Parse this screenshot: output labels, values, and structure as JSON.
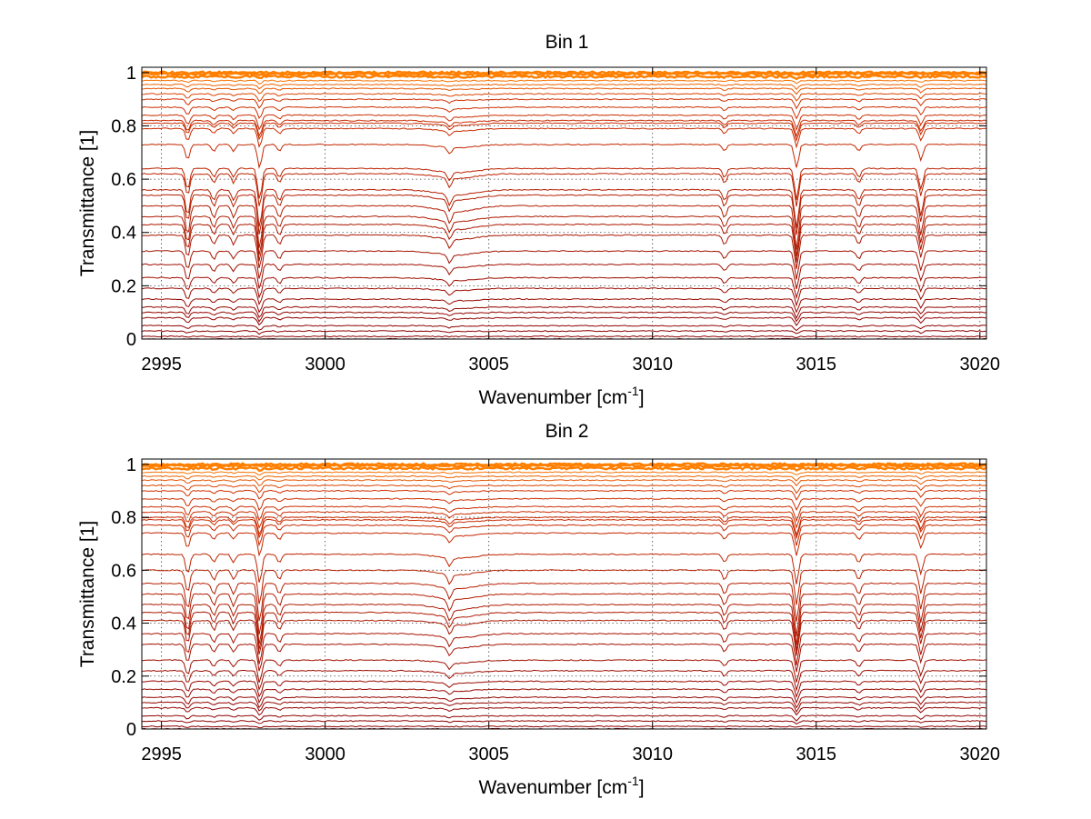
{
  "chart_data": [
    {
      "type": "line",
      "title": "Bin 1",
      "xlabel": "Wavenumber [cm",
      "xlabel_sup": "-1",
      "xlabel_suffix": "]",
      "ylabel": "Transmittance [1]",
      "xlim": [
        2994.4,
        3020.2
      ],
      "ylim": [
        0,
        1.02
      ],
      "xticks": [
        2995,
        3000,
        3005,
        3010,
        3015,
        3020
      ],
      "yticks": [
        0,
        0.2,
        0.4,
        0.6,
        0.8,
        1
      ],
      "ytick_labels": [
        "0",
        "0.2",
        "0.4",
        "0.6",
        "0.8",
        "1"
      ],
      "grid": true,
      "grid_style": "dotted",
      "colors": {
        "dark": "#8b0000",
        "mid": "#d03000",
        "light": "#ff7f00"
      },
      "absorption_lines": [
        2995.8,
        2996.6,
        2997.2,
        2998.0,
        2998.6,
        3003.8,
        3012.2,
        3014.4,
        3016.3,
        3018.2
      ],
      "series_levels": [
        1.0,
        0.995,
        0.985,
        0.97,
        0.955,
        0.94,
        0.92,
        0.9,
        0.87,
        0.84,
        0.82,
        0.81,
        0.79,
        0.73,
        0.64,
        0.62,
        0.56,
        0.54,
        0.5,
        0.46,
        0.43,
        0.39,
        0.33,
        0.28,
        0.23,
        0.19,
        0.15,
        0.12,
        0.1,
        0.08,
        0.05,
        0.03,
        0.01,
        0.0
      ]
    },
    {
      "type": "line",
      "title": "Bin 2",
      "xlabel": "Wavenumber [cm",
      "xlabel_sup": "-1",
      "xlabel_suffix": "]",
      "ylabel": "Transmittance [1]",
      "xlim": [
        2994.4,
        3020.2
      ],
      "ylim": [
        0,
        1.02
      ],
      "xticks": [
        2995,
        3000,
        3005,
        3010,
        3015,
        3020
      ],
      "yticks": [
        0,
        0.2,
        0.4,
        0.6,
        0.8,
        1
      ],
      "ytick_labels": [
        "0",
        "0.2",
        "0.4",
        "0.6",
        "0.8",
        "1"
      ],
      "grid": true,
      "grid_style": "dotted",
      "colors": {
        "dark": "#8b0000",
        "mid": "#d03000",
        "light": "#ff7f00"
      },
      "absorption_lines": [
        2995.8,
        2996.6,
        2997.2,
        2998.0,
        2998.6,
        3003.8,
        3012.2,
        3014.4,
        3016.3,
        3018.2
      ],
      "series_levels": [
        1.0,
        0.995,
        0.985,
        0.97,
        0.955,
        0.94,
        0.92,
        0.9,
        0.87,
        0.84,
        0.82,
        0.8,
        0.79,
        0.77,
        0.74,
        0.66,
        0.6,
        0.55,
        0.51,
        0.47,
        0.44,
        0.41,
        0.36,
        0.32,
        0.26,
        0.22,
        0.18,
        0.15,
        0.12,
        0.1,
        0.08,
        0.05,
        0.03,
        0.01,
        0.0
      ]
    }
  ]
}
